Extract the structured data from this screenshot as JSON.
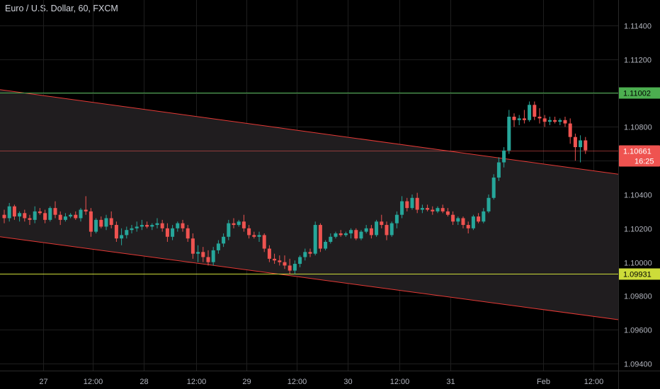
{
  "title": "Euro / U.S. Dollar, 60, FXCM",
  "colors": {
    "background": "#000000",
    "grid": "#1e1e1e",
    "text": "#b2b5be",
    "up": "#26a69a",
    "down": "#ef5350",
    "channel_line": "#e53935",
    "channel_fill": "#201d1f",
    "resistance": "#4caf50",
    "support": "#cddc39"
  },
  "chart_data": {
    "type": "candlestick",
    "symbol": "Euro / U.S. Dollar",
    "interval": "60",
    "source": "FXCM",
    "ylim": [
      1.0925,
      1.1155
    ],
    "y_ticks": [
      "1.11400",
      "1.11200",
      "1.11000",
      "1.10800",
      "1.10600",
      "1.10400",
      "1.10200",
      "1.10000",
      "1.09800",
      "1.09600",
      "1.09400"
    ],
    "x_ticks": [
      "27",
      "12:00",
      "28",
      "12:00",
      "29",
      "12:00",
      "30",
      "12:00",
      "31",
      "Feb",
      "12:00"
    ],
    "horizontal_lines": [
      {
        "label": "1.11002",
        "value": 1.11002,
        "kind": "resistance"
      },
      {
        "label": "1.09931",
        "value": 1.09931,
        "kind": "support"
      }
    ],
    "last_price": {
      "label": "1.10661",
      "value": 1.10661,
      "countdown": "16:25"
    },
    "channel": {
      "upper": [
        {
          "x": 0,
          "y": 1.1102
        },
        {
          "x": 139,
          "y": 1.1052
        }
      ],
      "lower": [
        {
          "x": 0,
          "y": 1.1015
        },
        {
          "x": 139,
          "y": 1.0966
        }
      ]
    },
    "candles": [
      [
        1.1028,
        1.1031,
        1.1023,
        1.1026
      ],
      [
        1.1026,
        1.1035,
        1.1024,
        1.1033
      ],
      [
        1.1033,
        1.1034,
        1.1025,
        1.1027
      ],
      [
        1.1027,
        1.103,
        1.1024,
        1.1029
      ],
      [
        1.1029,
        1.1031,
        1.1024,
        1.1026
      ],
      [
        1.1026,
        1.1028,
        1.1022,
        1.1025
      ],
      [
        1.1025,
        1.1033,
        1.1023,
        1.103
      ],
      [
        1.103,
        1.1032,
        1.1028,
        1.1029
      ],
      [
        1.1029,
        1.1031,
        1.1023,
        1.1025
      ],
      [
        1.1025,
        1.1033,
        1.1024,
        1.1032
      ],
      [
        1.1032,
        1.1036,
        1.1026,
        1.1028
      ],
      [
        1.1028,
        1.103,
        1.1022,
        1.1025
      ],
      [
        1.1025,
        1.1029,
        1.1024,
        1.1027
      ],
      [
        1.1027,
        1.1029,
        1.1026,
        1.1028
      ],
      [
        1.1028,
        1.103,
        1.1025,
        1.1026
      ],
      [
        1.1026,
        1.1032,
        1.1024,
        1.1031
      ],
      [
        1.1031,
        1.1039,
        1.1028,
        1.103
      ],
      [
        1.103,
        1.1032,
        1.1015,
        1.1018
      ],
      [
        1.1018,
        1.1026,
        1.1017,
        1.1025
      ],
      [
        1.1025,
        1.1027,
        1.102,
        1.1021
      ],
      [
        1.1021,
        1.1028,
        1.1019,
        1.1026
      ],
      [
        1.1026,
        1.103,
        1.102,
        1.1022
      ],
      [
        1.1022,
        1.1024,
        1.1012,
        1.1014
      ],
      [
        1.1014,
        1.102,
        1.101,
        1.1016
      ],
      [
        1.1016,
        1.1021,
        1.1014,
        1.1019
      ],
      [
        1.1019,
        1.1022,
        1.1017,
        1.102
      ],
      [
        1.102,
        1.1024,
        1.1018,
        1.1021
      ],
      [
        1.1021,
        1.1025,
        1.1019,
        1.1022
      ],
      [
        1.1022,
        1.1024,
        1.102,
        1.1021
      ],
      [
        1.1021,
        1.1023,
        1.1019,
        1.1022
      ],
      [
        1.1022,
        1.1026,
        1.102,
        1.1023
      ],
      [
        1.1023,
        1.1025,
        1.1018,
        1.102
      ],
      [
        1.102,
        1.1023,
        1.1012,
        1.1015
      ],
      [
        1.1015,
        1.1022,
        1.1013,
        1.102
      ],
      [
        1.102,
        1.1024,
        1.1018,
        1.1023
      ],
      [
        1.1023,
        1.1025,
        1.1018,
        1.102
      ],
      [
        1.102,
        1.1022,
        1.1012,
        1.1014
      ],
      [
        1.1014,
        1.1017,
        1.1002,
        1.1005
      ],
      [
        1.1005,
        1.101,
        1.1,
        1.1006
      ],
      [
        1.1006,
        1.1009,
        1.1,
        1.1003
      ],
      [
        1.1003,
        1.1007,
        1.0998,
        1.1
      ],
      [
        1.1,
        1.1009,
        1.0998,
        1.1007
      ],
      [
        1.1007,
        1.1013,
        1.1005,
        1.1011
      ],
      [
        1.1011,
        1.1017,
        1.1009,
        1.1015
      ],
      [
        1.1015,
        1.1025,
        1.1013,
        1.1023
      ],
      [
        1.1023,
        1.1026,
        1.102,
        1.1022
      ],
      [
        1.1022,
        1.1025,
        1.1021,
        1.1024
      ],
      [
        1.1024,
        1.1028,
        1.1018,
        1.102
      ],
      [
        1.102,
        1.1022,
        1.1014,
        1.1016
      ],
      [
        1.1016,
        1.1018,
        1.1014,
        1.1015
      ],
      [
        1.1015,
        1.1018,
        1.1012,
        1.1016
      ],
      [
        1.1016,
        1.1017,
        1.1006,
        1.1008
      ],
      [
        1.1008,
        1.101,
        1.1,
        1.1002
      ],
      [
        1.1002,
        1.1005,
        1.0999,
        1.1001
      ],
      [
        1.1001,
        1.1004,
        1.0998,
        1.1
      ],
      [
        1.1,
        1.1004,
        1.0996,
        1.0998
      ],
      [
        1.0998,
        1.1002,
        1.0993,
        1.0995
      ],
      [
        1.0995,
        1.1001,
        1.0993,
        1.0999
      ],
      [
        1.0999,
        1.1004,
        1.0997,
        1.1003
      ],
      [
        1.1003,
        1.1008,
        1.1001,
        1.1006
      ],
      [
        1.1006,
        1.1008,
        1.1003,
        1.1005
      ],
      [
        1.1005,
        1.1024,
        1.1004,
        1.1022
      ],
      [
        1.1022,
        1.1023,
        1.1006,
        1.1008
      ],
      [
        1.1008,
        1.1013,
        1.1007,
        1.1012
      ],
      [
        1.1012,
        1.1017,
        1.1011,
        1.1015
      ],
      [
        1.1015,
        1.1018,
        1.1014,
        1.1017
      ],
      [
        1.1017,
        1.1019,
        1.1015,
        1.1016
      ],
      [
        1.1016,
        1.1018,
        1.1015,
        1.1017
      ],
      [
        1.1017,
        1.102,
        1.1014,
        1.1019
      ],
      [
        1.1019,
        1.102,
        1.1013,
        1.1014
      ],
      [
        1.1014,
        1.1019,
        1.1013,
        1.1018
      ],
      [
        1.1018,
        1.1022,
        1.1017,
        1.102
      ],
      [
        1.102,
        1.1022,
        1.1014,
        1.1016
      ],
      [
        1.1016,
        1.1025,
        1.1015,
        1.1024
      ],
      [
        1.1024,
        1.1028,
        1.102,
        1.1022
      ],
      [
        1.1022,
        1.1024,
        1.1013,
        1.1016
      ],
      [
        1.1016,
        1.1024,
        1.1015,
        1.1023
      ],
      [
        1.1023,
        1.103,
        1.102,
        1.1028
      ],
      [
        1.1028,
        1.1039,
        1.1026,
        1.1036
      ],
      [
        1.1036,
        1.1038,
        1.103,
        1.1032
      ],
      [
        1.1032,
        1.104,
        1.1031,
        1.1038
      ],
      [
        1.1038,
        1.1041,
        1.1029,
        1.1031
      ],
      [
        1.1031,
        1.1034,
        1.1029,
        1.1032
      ],
      [
        1.1032,
        1.1034,
        1.103,
        1.1031
      ],
      [
        1.1031,
        1.1033,
        1.1028,
        1.103
      ],
      [
        1.103,
        1.1033,
        1.1029,
        1.1032
      ],
      [
        1.1032,
        1.1034,
        1.1029,
        1.103
      ],
      [
        1.103,
        1.1032,
        1.1027,
        1.1028
      ],
      [
        1.1028,
        1.103,
        1.1022,
        1.1024
      ],
      [
        1.1024,
        1.1027,
        1.1022,
        1.1026
      ],
      [
        1.1026,
        1.1027,
        1.102,
        1.1022
      ],
      [
        1.1022,
        1.1024,
        1.1017,
        1.102
      ],
      [
        1.102,
        1.1028,
        1.1019,
        1.1027
      ],
      [
        1.1027,
        1.1029,
        1.1023,
        1.1024
      ],
      [
        1.1024,
        1.1032,
        1.1023,
        1.103
      ],
      [
        1.103,
        1.104,
        1.1029,
        1.1038
      ],
      [
        1.1038,
        1.1052,
        1.1037,
        1.105
      ],
      [
        1.105,
        1.1062,
        1.1048,
        1.1059
      ],
      [
        1.1059,
        1.1068,
        1.1056,
        1.1066
      ],
      [
        1.1066,
        1.109,
        1.1064,
        1.1086
      ],
      [
        1.1086,
        1.1088,
        1.108,
        1.1084
      ],
      [
        1.1084,
        1.1087,
        1.1081,
        1.1085
      ],
      [
        1.1085,
        1.109,
        1.1082,
        1.1084
      ],
      [
        1.1084,
        1.1095,
        1.1083,
        1.1093
      ],
      [
        1.1093,
        1.1095,
        1.1084,
        1.1086
      ],
      [
        1.1086,
        1.1091,
        1.1082,
        1.1085
      ],
      [
        1.1085,
        1.1087,
        1.108,
        1.1083
      ],
      [
        1.1083,
        1.1086,
        1.1081,
        1.1084
      ],
      [
        1.1084,
        1.1086,
        1.1082,
        1.1083
      ],
      [
        1.1083,
        1.1085,
        1.1081,
        1.1084
      ],
      [
        1.1084,
        1.1086,
        1.108,
        1.1082
      ],
      [
        1.1082,
        1.1085,
        1.107,
        1.1074
      ],
      [
        1.1074,
        1.1076,
        1.106,
        1.1068
      ],
      [
        1.1068,
        1.1075,
        1.1059,
        1.1072
      ],
      [
        1.1072,
        1.1074,
        1.1064,
        1.10661
      ]
    ]
  }
}
